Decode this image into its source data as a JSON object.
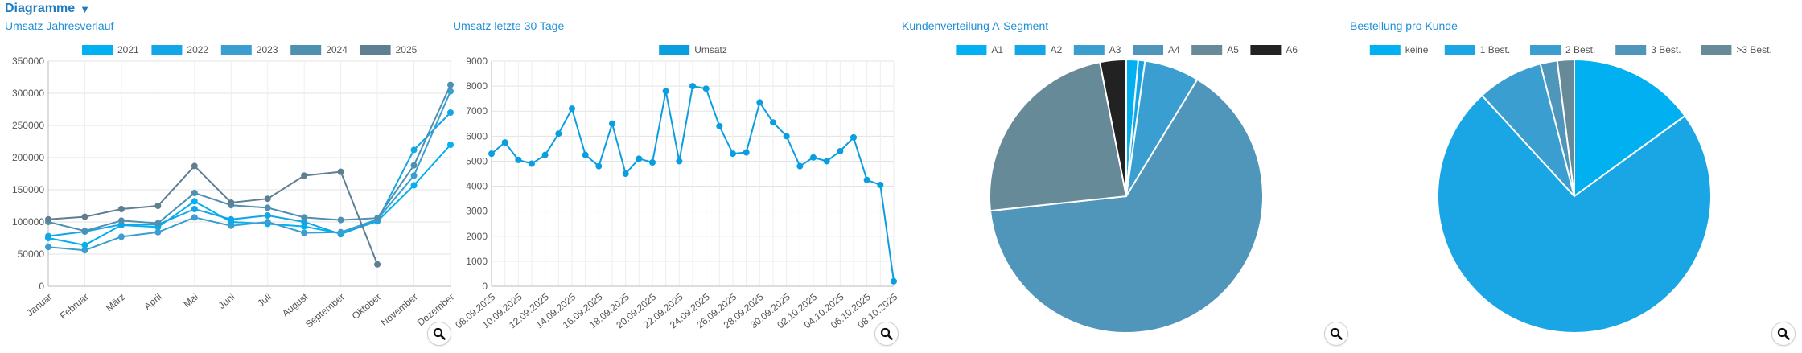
{
  "header": {
    "title": "Diagramme"
  },
  "chart_data": [
    {
      "id": "c1",
      "type": "line",
      "title": "Umsatz Jahresverlauf",
      "categories": [
        "Januar",
        "Februar",
        "März",
        "April",
        "Mai",
        "Juni",
        "Juli",
        "August",
        "September",
        "Oktober",
        "November",
        "Dezember"
      ],
      "ylim": [
        0,
        350000
      ],
      "yticks": [
        0,
        50000,
        100000,
        150000,
        200000,
        250000,
        300000,
        350000
      ],
      "grid": true,
      "legend": "top",
      "series": [
        {
          "name": "2021",
          "color": "#00b0f0",
          "values": [
            75000,
            64000,
            95000,
            92000,
            132000,
            100000,
            97000,
            93000,
            82000,
            101000,
            157000,
            220000
          ]
        },
        {
          "name": "2022",
          "color": "#12a6e8",
          "values": [
            78000,
            85000,
            96000,
            96000,
            120000,
            104000,
            110000,
            100000,
            81000,
            102000,
            212000,
            270000
          ]
        },
        {
          "name": "2023",
          "color": "#3a9fd0",
          "values": [
            61000,
            56000,
            77000,
            84000,
            107000,
            94000,
            100000,
            83000,
            84000,
            104000,
            172000,
            303000
          ]
        },
        {
          "name": "2024",
          "color": "#4f8fb0",
          "values": [
            100000,
            86000,
            102000,
            98000,
            145000,
            126000,
            122000,
            107000,
            103000,
            106000,
            188000,
            313000
          ]
        },
        {
          "name": "2025",
          "color": "#5e7f92",
          "values": [
            104000,
            108000,
            120000,
            125000,
            187000,
            130000,
            136000,
            172000,
            178000,
            34000,
            null,
            null
          ]
        }
      ]
    },
    {
      "id": "c2",
      "type": "line",
      "title": "Umsatz letzte 30 Tage",
      "categories": [
        "08.09.2025",
        "09.09.2025",
        "10.09.2025",
        "11.09.2025",
        "12.09.2025",
        "13.09.2025",
        "14.09.2025",
        "15.09.2025",
        "16.09.2025",
        "17.09.2025",
        "18.09.2025",
        "19.09.2025",
        "20.09.2025",
        "21.09.2025",
        "22.09.2025",
        "23.09.2025",
        "24.09.2025",
        "25.09.2025",
        "26.09.2025",
        "27.09.2025",
        "28.09.2025",
        "29.09.2025",
        "30.09.2025",
        "01.10.2025",
        "02.10.2025",
        "03.10.2025",
        "04.10.2025",
        "05.10.2025",
        "06.10.2025",
        "07.10.2025",
        "08.10.2025"
      ],
      "tick_labels": [
        "08.09.2025",
        "10.09.2025",
        "12.09.2025",
        "14.09.2025",
        "16.09.2025",
        "18.09.2025",
        "20.09.2025",
        "22.09.2025",
        "24.09.2025",
        "26.09.2025",
        "28.09.2025",
        "30.09.2025",
        "02.10.2025",
        "04.10.2025",
        "06.10.2025",
        "08.10.2025"
      ],
      "ylim": [
        0,
        9000
      ],
      "yticks": [
        0,
        1000,
        2000,
        3000,
        4000,
        5000,
        6000,
        7000,
        8000,
        9000
      ],
      "grid": true,
      "legend": "top",
      "series": [
        {
          "name": "Umsatz",
          "color": "#0a9ee0",
          "values": [
            5300,
            5750,
            5050,
            4900,
            5250,
            6100,
            7100,
            5250,
            4800,
            6500,
            4500,
            5100,
            4950,
            7800,
            5000,
            8000,
            7900,
            6400,
            5300,
            5350,
            7350,
            6550,
            6000,
            4800,
            5150,
            5000,
            5400,
            5950,
            4250,
            4050,
            200
          ]
        }
      ]
    },
    {
      "id": "c3",
      "type": "pie",
      "title": "Kundenverteilung A-Segment",
      "legend": "top",
      "categories": [
        "A1",
        "A2",
        "A3",
        "A4",
        "A5",
        "A6"
      ],
      "values": [
        1.4,
        0.8,
        6.5,
        64.6,
        23.6,
        3.1
      ],
      "colors": [
        "#00b0f0",
        "#12a6e8",
        "#3a9fd0",
        "#4f96ba",
        "#678a99",
        "#222222"
      ]
    },
    {
      "id": "c4",
      "type": "pie",
      "title": "Bestellung pro Kunde",
      "legend": "top",
      "categories": [
        "keine",
        "1 Best.",
        "2 Best.",
        "3 Best.",
        ">3 Best."
      ],
      "values": [
        15.0,
        73.2,
        7.8,
        2.0,
        2.0
      ],
      "colors": [
        "#00b0f0",
        "#1aa6e4",
        "#3a9fd0",
        "#4f96ba",
        "#678a99"
      ]
    }
  ]
}
